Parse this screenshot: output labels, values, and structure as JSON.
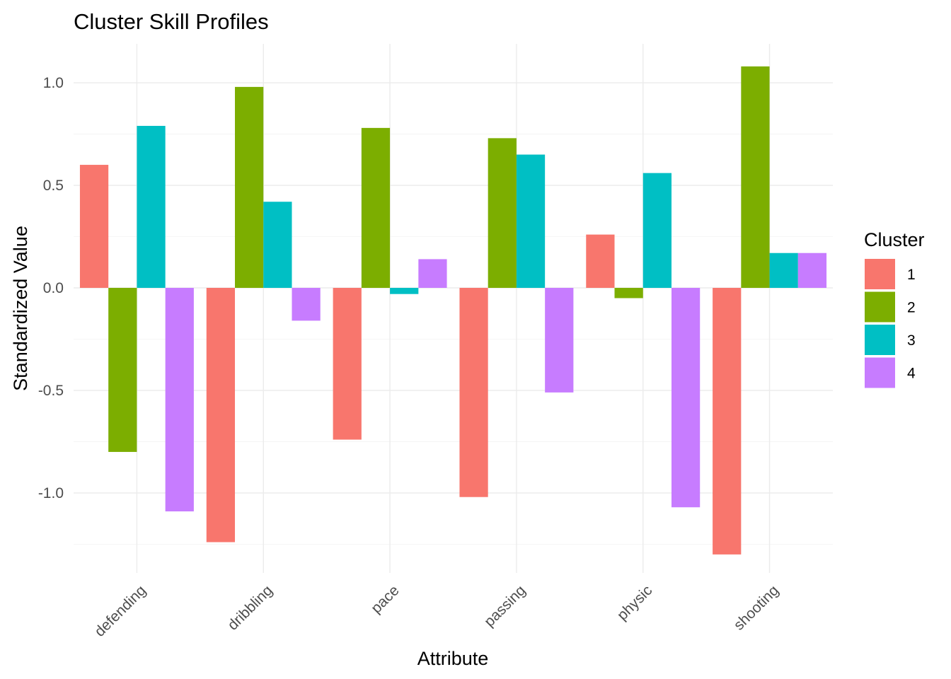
{
  "chart_data": {
    "type": "bar",
    "title": "Cluster Skill Profiles",
    "xlabel": "Attribute",
    "ylabel": "Standardized Value",
    "categories": [
      "defending",
      "dribbling",
      "pace",
      "passing",
      "physic",
      "shooting"
    ],
    "series": [
      {
        "name": "1",
        "color": "#F8766D",
        "values": [
          0.6,
          -1.24,
          -0.74,
          -1.02,
          0.26,
          -1.3
        ]
      },
      {
        "name": "2",
        "color": "#7CAE00",
        "values": [
          -0.8,
          0.98,
          0.78,
          0.73,
          -0.05,
          1.08
        ]
      },
      {
        "name": "3",
        "color": "#00BFC4",
        "values": [
          0.79,
          0.42,
          -0.03,
          0.65,
          0.56,
          0.17
        ]
      },
      {
        "name": "4",
        "color": "#C77CFF",
        "values": [
          -1.09,
          -0.16,
          0.14,
          -0.51,
          -1.07,
          0.17
        ]
      }
    ],
    "ylim": [
      -1.39,
      1.19
    ],
    "yticks": [
      "-1.0",
      "-0.5",
      "0.0",
      "0.5",
      "1.0"
    ],
    "grid": true,
    "legend": {
      "title": "Cluster",
      "placement": "right"
    }
  }
}
